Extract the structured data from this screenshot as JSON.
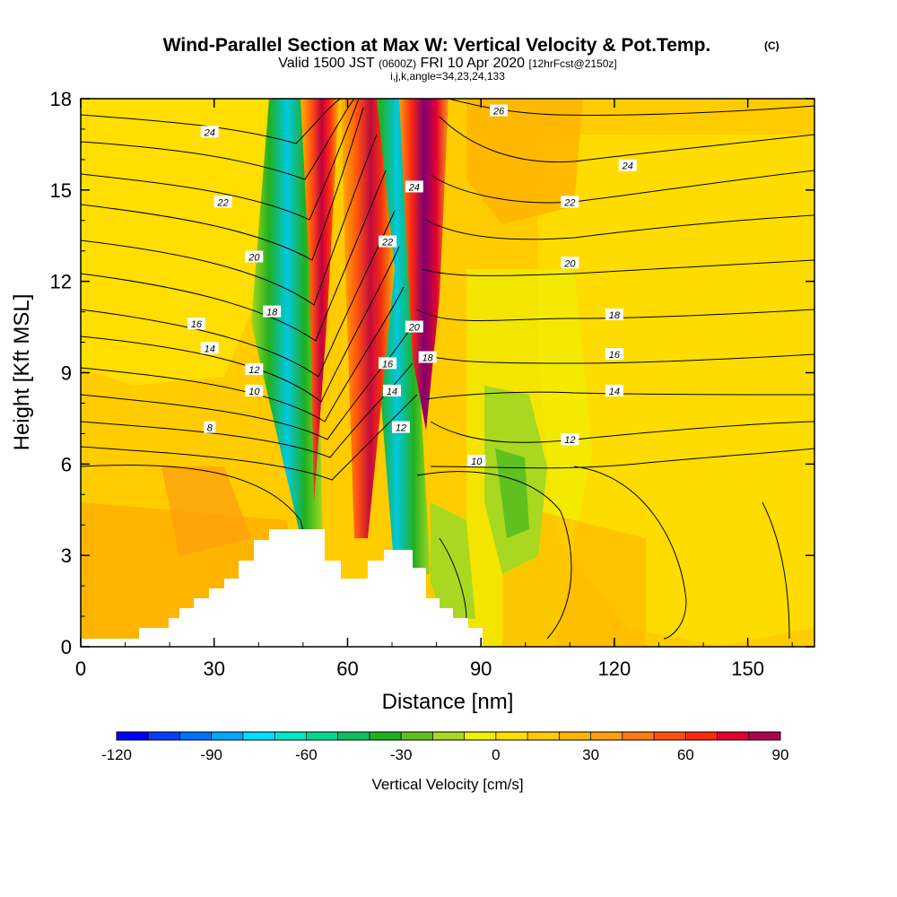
{
  "header": {
    "title": "Wind-Parallel Section at Max W: Vertical Velocity & Pot.Temp.",
    "title_mark": "(C)",
    "valid_prefix": "Valid 1500 JST",
    "valid_utc": "(0600Z)",
    "valid_date": "FRI 10 Apr 2020",
    "forecast_info": "[12hrFcst@2150z]",
    "grid_info": "i,j,k,angle=34,23,24,133"
  },
  "chart_data": {
    "type": "heatmap",
    "xlabel": "Distance [nm]",
    "ylabel": "Height [Kft MSL]",
    "xlim": [
      0,
      165
    ],
    "ylim": [
      0,
      18
    ],
    "xticks": [
      "0",
      "30",
      "60",
      "90",
      "120",
      "150"
    ],
    "yticks": [
      "0",
      "3",
      "6",
      "9",
      "12",
      "15",
      "18"
    ],
    "colorbar": {
      "label": "Vertical Velocity [cm/s]",
      "range": [
        -120,
        90
      ],
      "step": 10,
      "tick_labels": [
        "-120",
        "-90",
        "-60",
        "-30",
        "0",
        "30",
        "60",
        "90"
      ],
      "colors": [
        "#0000ff",
        "#0a3cff",
        "#0070ff",
        "#00a8ff",
        "#00e0ff",
        "#00e8c8",
        "#00d890",
        "#10c060",
        "#20b020",
        "#60c020",
        "#a8d820",
        "#f0f000",
        "#ffe000",
        "#ffcc00",
        "#ffb400",
        "#ff9c10",
        "#ff7a10",
        "#ff5010",
        "#ff2810",
        "#e00030",
        "#b00050",
        "#800070"
      ]
    },
    "contour_labels": [
      {
        "text": "24",
        "x": 29,
        "y": 16.9
      },
      {
        "text": "22",
        "x": 32,
        "y": 14.6
      },
      {
        "text": "20",
        "x": 39,
        "y": 12.8
      },
      {
        "text": "18",
        "x": 43,
        "y": 11.0
      },
      {
        "text": "16",
        "x": 26,
        "y": 10.6
      },
      {
        "text": "14",
        "x": 29,
        "y": 9.8
      },
      {
        "text": "12",
        "x": 39,
        "y": 9.1
      },
      {
        "text": "10",
        "x": 39,
        "y": 8.4
      },
      {
        "text": "8",
        "x": 29,
        "y": 7.2
      },
      {
        "text": "26",
        "x": 94,
        "y": 17.6
      },
      {
        "text": "24",
        "x": 75,
        "y": 15.1
      },
      {
        "text": "22",
        "x": 69,
        "y": 13.3
      },
      {
        "text": "24",
        "x": 123,
        "y": 15.8
      },
      {
        "text": "22",
        "x": 110,
        "y": 14.6
      },
      {
        "text": "20",
        "x": 110,
        "y": 12.6
      },
      {
        "text": "18",
        "x": 120,
        "y": 10.9
      },
      {
        "text": "16",
        "x": 120,
        "y": 9.6
      },
      {
        "text": "14",
        "x": 120,
        "y": 8.4
      },
      {
        "text": "20",
        "x": 75,
        "y": 10.5
      },
      {
        "text": "18",
        "x": 78,
        "y": 9.5
      },
      {
        "text": "16",
        "x": 69,
        "y": 9.3
      },
      {
        "text": "14",
        "x": 70,
        "y": 8.4
      },
      {
        "text": "12",
        "x": 72,
        "y": 7.2
      },
      {
        "text": "10",
        "x": 89,
        "y": 6.1
      },
      {
        "text": "12",
        "x": 110,
        "y": 6.8
      }
    ],
    "terrain_note": "white blocky terrain (no data below ground)"
  }
}
